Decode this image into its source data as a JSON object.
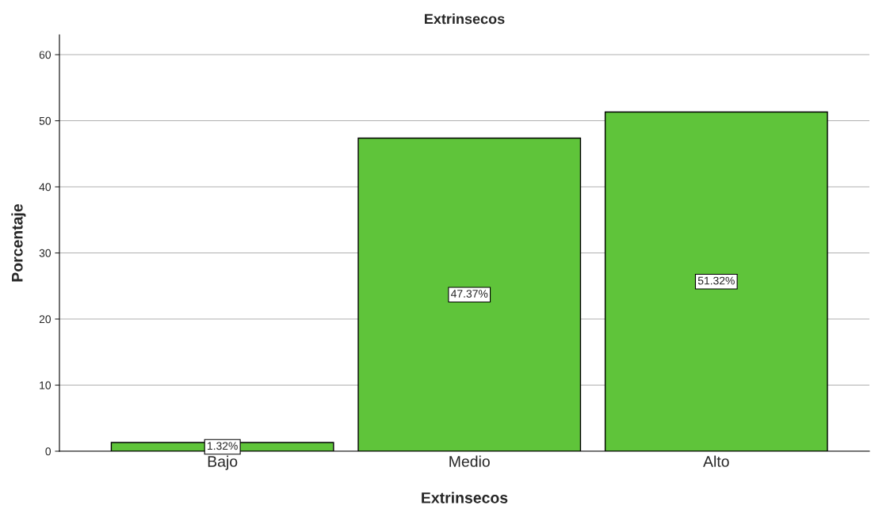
{
  "chart_data": {
    "type": "bar",
    "title": "Extrinsecos",
    "xlabel": "Extrinsecos",
    "ylabel": "Porcentaje",
    "categories": [
      "Bajo",
      "Medio",
      "Alto"
    ],
    "values": [
      1.32,
      47.37,
      51.32
    ],
    "value_labels": [
      "1.32%",
      "47.37%",
      "51.32%"
    ],
    "color": "#5fc43a",
    "ylim": [
      0,
      63
    ],
    "yticks": [
      0,
      10,
      20,
      30,
      40,
      50,
      60
    ],
    "grid": "y",
    "legend": false
  }
}
